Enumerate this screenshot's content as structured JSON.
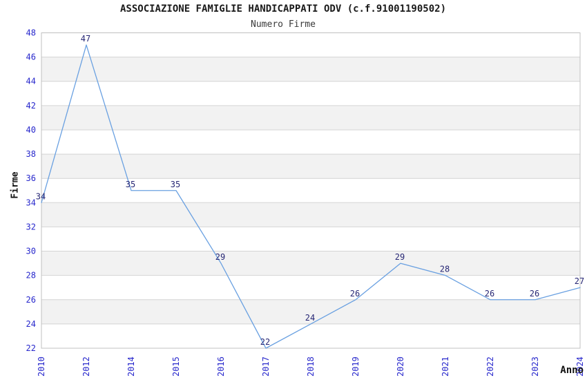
{
  "chart_data": {
    "type": "line",
    "title": "ASSOCIAZIONE FAMIGLIE HANDICAPPATI ODV (c.f.91001190502)",
    "subtitle": "Numero Firme",
    "xlabel": "Anno",
    "ylabel": "Firme",
    "categories": [
      "2010",
      "2012",
      "2014",
      "2015",
      "2016",
      "2017",
      "2018",
      "2019",
      "2020",
      "2021",
      "2022",
      "2023",
      "2024"
    ],
    "values": [
      34,
      47,
      35,
      35,
      29,
      22,
      24,
      26,
      29,
      28,
      26,
      26,
      27
    ],
    "ylim": [
      22,
      48
    ],
    "ytick_step": 2,
    "grid": "horizontal",
    "band_fill": "alternating",
    "legend_position": "none",
    "data_labels_visible": true,
    "colors": {
      "line": "#69a0e1",
      "band": "#f2f2f2",
      "band_alt": "#ffffff",
      "gridline": "#d4d4d4",
      "plot_border": "#c0c0c0",
      "axis_tick_label": "#2727cc",
      "data_label": "#262674",
      "title": "#1a1a1a"
    }
  }
}
